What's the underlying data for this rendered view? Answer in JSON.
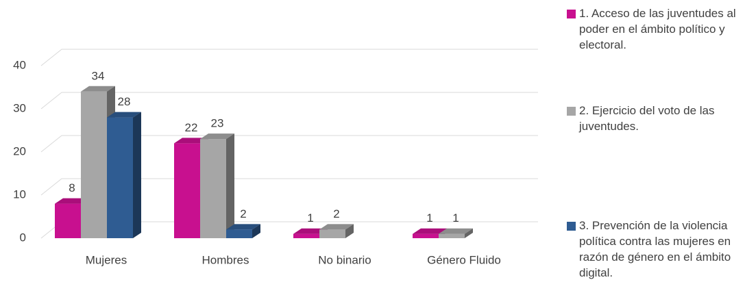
{
  "chart_data": {
    "type": "bar3d",
    "categories": [
      "Mujeres",
      "Hombres",
      "No binario",
      "Género Fluido"
    ],
    "series": [
      {
        "name": "1. Acceso de las juventudes al poder en el ámbito político y electoral.",
        "color": "#c8108f",
        "values": [
          8,
          22,
          1,
          1
        ]
      },
      {
        "name": "2. Ejercicio del voto de las juventudes.",
        "color": "#a6a6a6",
        "values": [
          34,
          23,
          2,
          1
        ]
      },
      {
        "name": "3. Prevención de la violencia política contra las mujeres en razón de género en el ámbito digital.",
        "color": "#2f5c92",
        "values": [
          28,
          2,
          null,
          null
        ]
      }
    ],
    "ylim": [
      0,
      40
    ],
    "yticks": [
      0,
      10,
      20,
      30,
      40
    ],
    "grid": true,
    "legend": "right"
  }
}
